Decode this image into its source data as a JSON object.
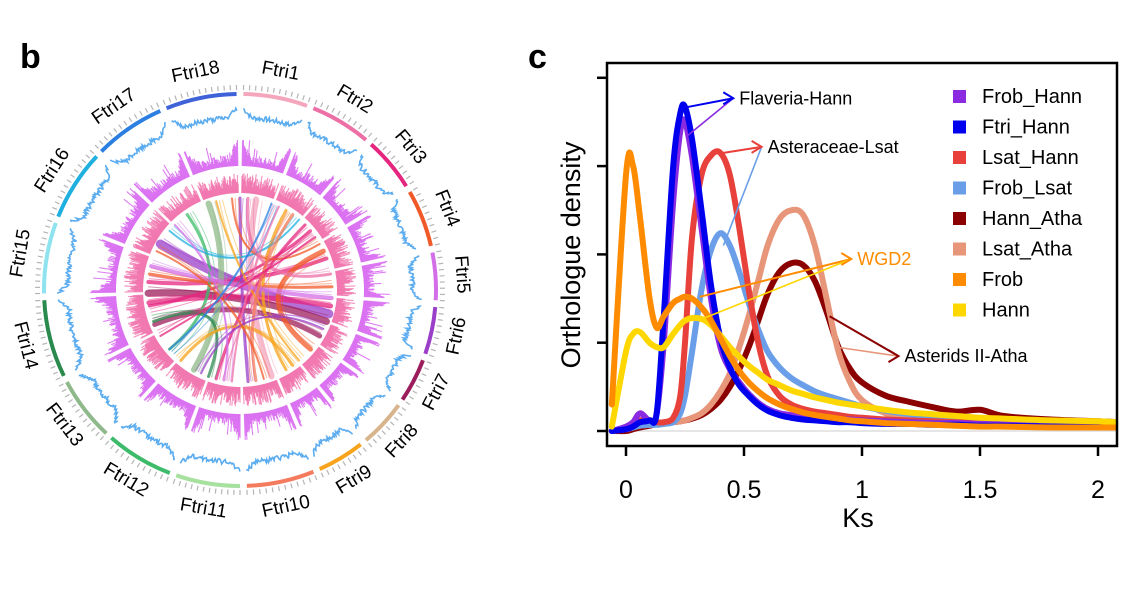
{
  "panels": {
    "b": {
      "letter": "b",
      "chromosomes": [
        {
          "name": "Ftri1",
          "start": 1,
          "end": 20,
          "color": "#f4a6bd"
        },
        {
          "name": "Ftri2",
          "start": 22,
          "end": 40,
          "color": "#ec6fa6"
        },
        {
          "name": "Ftri3",
          "start": 42,
          "end": 58,
          "color": "#e5267f"
        },
        {
          "name": "Ftri4",
          "start": 60,
          "end": 77,
          "color": "#f05a28"
        },
        {
          "name": "Ftri5",
          "start": 79,
          "end": 93,
          "color": "#d36ee8"
        },
        {
          "name": "Ftri6",
          "start": 95,
          "end": 109,
          "color": "#9b3fc9"
        },
        {
          "name": "Ftri7",
          "start": 111,
          "end": 124,
          "color": "#9c1d5c"
        },
        {
          "name": "Ftri8",
          "start": 126,
          "end": 140,
          "color": "#d8b48c"
        },
        {
          "name": "Ftri9",
          "start": 142,
          "end": 156,
          "color": "#f7a31b"
        },
        {
          "name": "Ftri10",
          "start": 158,
          "end": 178,
          "color": "#f47b5e"
        },
        {
          "name": "Ftri11",
          "start": 180,
          "end": 199,
          "color": "#a8e0a0"
        },
        {
          "name": "Ftri12",
          "start": 201,
          "end": 221,
          "color": "#3dbb6a"
        },
        {
          "name": "Ftri13",
          "start": 223,
          "end": 242,
          "color": "#8fb98a"
        },
        {
          "name": "Ftri14",
          "start": 244,
          "end": 267,
          "color": "#2a8a4e"
        },
        {
          "name": "Ftri15",
          "start": 269,
          "end": 290,
          "color": "#8fe3ef"
        },
        {
          "name": "Ftri16",
          "start": 292,
          "end": 313,
          "color": "#1fb0e0"
        },
        {
          "name": "Ftri17",
          "start": 315,
          "end": 336,
          "color": "#2c7fe0"
        },
        {
          "name": "Ftri18",
          "start": 338,
          "end": 359,
          "color": "#4062d8"
        }
      ],
      "track_colors": {
        "gene_density": "#4aa3ee",
        "repeat_density": "#d65ff0",
        "inner_histogram": "#f06aa8"
      },
      "links": [
        {
          "from": 300,
          "to": 105,
          "color": "#9b3fc9",
          "width": 9
        },
        {
          "from": 268,
          "to": 110,
          "color": "#9c1d5c",
          "width": 7
        },
        {
          "from": 262,
          "to": 100,
          "color": "#e5267f",
          "width": 5
        },
        {
          "from": 248,
          "to": 120,
          "color": "#9c1d5c",
          "width": 5
        },
        {
          "from": 275,
          "to": 70,
          "color": "#e5267f",
          "width": 4
        },
        {
          "from": 280,
          "to": 88,
          "color": "#f05a28",
          "width": 3
        },
        {
          "from": 0,
          "to": 175,
          "color": "#9b3fc9",
          "width": 3
        },
        {
          "from": 10,
          "to": 160,
          "color": "#f4a6bd",
          "width": 6
        },
        {
          "from": 30,
          "to": 150,
          "color": "#f7a31b",
          "width": 3
        },
        {
          "from": 45,
          "to": 195,
          "color": "#e5267f",
          "width": 3
        },
        {
          "from": 50,
          "to": 260,
          "color": "#e5267f",
          "width": 3
        },
        {
          "from": 65,
          "to": 130,
          "color": "#f05a28",
          "width": 5
        },
        {
          "from": 340,
          "to": 210,
          "color": "#8fb98a",
          "width": 6
        },
        {
          "from": 325,
          "to": 230,
          "color": "#3dbb6a",
          "width": 3
        },
        {
          "from": 250,
          "to": 200,
          "color": "#2a8a4e",
          "width": 3
        },
        {
          "from": 310,
          "to": 40,
          "color": "#1fb0e0",
          "width": 2
        },
        {
          "from": 345,
          "to": 140,
          "color": "#f7a31b",
          "width": 2
        },
        {
          "from": 355,
          "to": 60,
          "color": "#f05a28",
          "width": 2
        },
        {
          "from": 285,
          "to": 95,
          "color": "#d36ee8",
          "width": 4
        },
        {
          "from": 5,
          "to": 80,
          "color": "#ec6fa6",
          "width": 3
        },
        {
          "from": 220,
          "to": 145,
          "color": "#f7a31b",
          "width": 3
        },
        {
          "from": 185,
          "to": 25,
          "color": "#ec6fa6",
          "width": 2
        },
        {
          "from": 170,
          "to": 35,
          "color": "#f47b5e",
          "width": 3
        },
        {
          "from": 240,
          "to": 55,
          "color": "#e5267f",
          "width": 2
        },
        {
          "from": 205,
          "to": 115,
          "color": "#9b3fc9",
          "width": 2
        },
        {
          "from": 315,
          "to": 190,
          "color": "#d36ee8",
          "width": 2
        },
        {
          "from": 295,
          "to": 165,
          "color": "#f05a28",
          "width": 2
        },
        {
          "from": 20,
          "to": 230,
          "color": "#2c7fe0",
          "width": 2
        }
      ]
    },
    "c": {
      "letter": "c"
    }
  },
  "chart_data": {
    "type": "line",
    "title": "",
    "xlabel": "Ks",
    "ylabel": "Orthologue density",
    "xlim": [
      -0.08,
      2.08
    ],
    "ylim": [
      -0.2,
      4.15
    ],
    "xticks": [
      0,
      0.5,
      1,
      1.5,
      2
    ],
    "xtick_labels": [
      "0",
      "0.5",
      "1",
      "1.5",
      "2"
    ],
    "yticks": [
      0,
      1,
      2,
      3,
      4
    ],
    "ytick_labels": [
      "",
      "",
      "",
      "",
      ""
    ],
    "grid": false,
    "legend_position": "top-right",
    "x": [
      -0.06,
      0,
      0.03,
      0.06,
      0.1,
      0.13,
      0.16,
      0.2,
      0.23,
      0.25,
      0.28,
      0.32,
      0.36,
      0.4,
      0.44,
      0.48,
      0.52,
      0.56,
      0.6,
      0.65,
      0.7,
      0.75,
      0.8,
      0.85,
      0.9,
      0.95,
      1.0,
      1.1,
      1.2,
      1.3,
      1.4,
      1.5,
      1.6,
      1.8,
      2.0,
      2.08
    ],
    "series": [
      {
        "name": "Frob_Hann",
        "color": "#8a2be2",
        "values": [
          0.0,
          0.05,
          0.1,
          0.2,
          0.12,
          0.2,
          1.0,
          2.6,
          3.4,
          3.5,
          3.1,
          2.3,
          1.5,
          0.95,
          0.7,
          0.55,
          0.42,
          0.32,
          0.25,
          0.2,
          0.18,
          0.16,
          0.15,
          0.14,
          0.13,
          0.13,
          0.12,
          0.11,
          0.1,
          0.09,
          0.09,
          0.08,
          0.08,
          0.07,
          0.06,
          0.06
        ]
      },
      {
        "name": "Ftri_Hann",
        "color": "#0000ee",
        "values": [
          0.0,
          0.02,
          0.05,
          0.1,
          0.12,
          0.2,
          1.3,
          3.0,
          3.6,
          3.67,
          3.3,
          2.5,
          1.65,
          1.05,
          0.72,
          0.52,
          0.4,
          0.3,
          0.23,
          0.18,
          0.15,
          0.13,
          0.12,
          0.11,
          0.1,
          0.1,
          0.09,
          0.08,
          0.08,
          0.07,
          0.07,
          0.06,
          0.06,
          0.05,
          0.05,
          0.05
        ]
      },
      {
        "name": "Lsat_Hann",
        "color": "#e8403a",
        "values": [
          0.0,
          0.03,
          0.07,
          0.12,
          0.12,
          0.1,
          0.1,
          0.15,
          0.4,
          1.0,
          2.2,
          2.9,
          3.12,
          3.15,
          2.9,
          2.3,
          1.6,
          1.0,
          0.62,
          0.4,
          0.3,
          0.25,
          0.22,
          0.2,
          0.18,
          0.16,
          0.15,
          0.13,
          0.12,
          0.11,
          0.1,
          0.1,
          0.09,
          0.08,
          0.08,
          0.08
        ]
      },
      {
        "name": "Frob_Lsat",
        "color": "#6a9ee8",
        "values": [
          0.0,
          0.02,
          0.04,
          0.06,
          0.07,
          0.07,
          0.08,
          0.1,
          0.2,
          0.4,
          0.9,
          1.6,
          2.05,
          2.24,
          2.1,
          1.8,
          1.45,
          1.15,
          0.9,
          0.72,
          0.6,
          0.52,
          0.45,
          0.4,
          0.36,
          0.32,
          0.28,
          0.23,
          0.19,
          0.16,
          0.14,
          0.12,
          0.11,
          0.09,
          0.08,
          0.08
        ]
      },
      {
        "name": "Hann_Atha",
        "color": "#8b0000",
        "values": [
          0.0,
          0.0,
          0.02,
          0.04,
          0.06,
          0.08,
          0.09,
          0.1,
          0.11,
          0.12,
          0.14,
          0.18,
          0.25,
          0.35,
          0.5,
          0.7,
          0.95,
          1.25,
          1.55,
          1.8,
          1.9,
          1.88,
          1.7,
          1.35,
          0.95,
          0.7,
          0.55,
          0.4,
          0.33,
          0.27,
          0.22,
          0.24,
          0.17,
          0.13,
          0.11,
          0.1
        ]
      },
      {
        "name": "Lsat_Atha",
        "color": "#e8967a",
        "values": [
          0.0,
          0.02,
          0.04,
          0.06,
          0.07,
          0.08,
          0.09,
          0.1,
          0.11,
          0.12,
          0.15,
          0.2,
          0.3,
          0.45,
          0.65,
          0.95,
          1.3,
          1.7,
          2.1,
          2.4,
          2.5,
          2.45,
          2.1,
          1.5,
          0.9,
          0.55,
          0.35,
          0.2,
          0.16,
          0.13,
          0.1,
          0.08,
          0.07,
          0.06,
          0.05,
          0.05
        ]
      },
      {
        "name": "Frob",
        "color": "#ff8c00",
        "values": [
          0.3,
          2.9,
          3.0,
          2.4,
          1.5,
          1.17,
          1.3,
          1.45,
          1.5,
          1.52,
          1.5,
          1.4,
          1.25,
          1.05,
          0.85,
          0.68,
          0.55,
          0.45,
          0.37,
          0.3,
          0.25,
          0.21,
          0.18,
          0.16,
          0.14,
          0.12,
          0.11,
          0.09,
          0.08,
          0.07,
          0.06,
          0.05,
          0.05,
          0.04,
          0.04,
          0.04
        ]
      },
      {
        "name": "Hann",
        "color": "#ffd700",
        "values": [
          0.05,
          0.9,
          1.1,
          1.12,
          1.0,
          0.95,
          0.95,
          1.1,
          1.2,
          1.25,
          1.28,
          1.27,
          1.2,
          1.08,
          0.95,
          0.84,
          0.74,
          0.66,
          0.58,
          0.52,
          0.46,
          0.42,
          0.38,
          0.35,
          0.32,
          0.3,
          0.28,
          0.24,
          0.21,
          0.19,
          0.17,
          0.15,
          0.14,
          0.12,
          0.11,
          0.1
        ]
      }
    ],
    "annotations": [
      {
        "text": "Flaveria-Hann",
        "color": "#000000",
        "arrow_colors": [
          "#0000ee",
          "#8a2be2"
        ],
        "targets": [
          [
            0.25,
            3.67
          ],
          [
            0.25,
            3.35
          ]
        ],
        "label_at": [
          0.48,
          3.7
        ]
      },
      {
        "text": "Asteraceae-Lsat",
        "color": "#000000",
        "arrow_colors": [
          "#e8403a",
          "#6a9ee8"
        ],
        "targets": [
          [
            0.4,
            3.15
          ],
          [
            0.4,
            2.1
          ]
        ],
        "label_at": [
          0.6,
          3.15
        ]
      },
      {
        "text": "WGD2",
        "color": "#ff8c00",
        "arrow_colors": [
          "#ff8c00",
          "#ffd700"
        ],
        "targets": [
          [
            0.3,
            1.52
          ],
          [
            0.32,
            1.28
          ]
        ],
        "label_at": [
          0.98,
          1.88
        ]
      },
      {
        "text": "Asterids II-Atha",
        "color": "#000000",
        "arrow_colors": [
          "#8b0000",
          "#e8967a"
        ],
        "targets": [
          [
            0.85,
            1.3
          ],
          [
            0.88,
            0.95
          ]
        ],
        "label_at": [
          1.18,
          0.78
        ]
      }
    ]
  }
}
